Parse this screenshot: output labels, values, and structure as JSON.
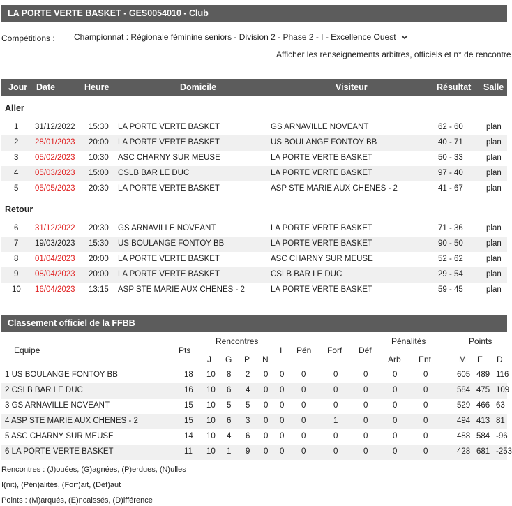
{
  "header": {
    "title": "LA PORTE VERTE BASKET - GES0054010 - Club"
  },
  "competitions": {
    "label": "Compétitions :",
    "selected": "Championnat : Régionale féminine seniors - Division 2 - Phase 2 - I - Excellence Ouest",
    "details_link": "Afficher les renseignements arbitres, officiels et n° de rencontre"
  },
  "schedule": {
    "columns": [
      "Jour",
      "Date",
      "Heure",
      "Domicile",
      "Visiteur",
      "Résultat",
      "Salle"
    ],
    "aller_label": "Aller",
    "retour_label": "Retour",
    "aller": [
      {
        "jour": "1",
        "date": "31/12/2022",
        "date_red": false,
        "heure": "15:30",
        "domicile": "LA PORTE VERTE BASKET",
        "visiteur": "GS ARNAVILLE NOVEANT",
        "resultat": "62 - 60",
        "salle": "plan"
      },
      {
        "jour": "2",
        "date": "28/01/2023",
        "date_red": true,
        "heure": "20:00",
        "domicile": "LA PORTE VERTE BASKET",
        "visiteur": "US BOULANGE FONTOY BB",
        "resultat": "40 - 71",
        "salle": "plan"
      },
      {
        "jour": "3",
        "date": "05/02/2023",
        "date_red": true,
        "heure": "10:30",
        "domicile": "ASC CHARNY SUR MEUSE",
        "visiteur": "LA PORTE VERTE BASKET",
        "resultat": "50 - 33",
        "salle": "plan"
      },
      {
        "jour": "4",
        "date": "05/03/2023",
        "date_red": true,
        "heure": "15:00",
        "domicile": "CSLB BAR LE DUC",
        "visiteur": "LA PORTE VERTE BASKET",
        "resultat": "97 - 40",
        "salle": "plan"
      },
      {
        "jour": "5",
        "date": "05/05/2023",
        "date_red": true,
        "heure": "20:30",
        "domicile": "LA PORTE VERTE BASKET",
        "visiteur": "ASP STE MARIE AUX CHENES - 2",
        "resultat": "41 - 67",
        "salle": "plan"
      }
    ],
    "retour": [
      {
        "jour": "6",
        "date": "31/12/2022",
        "date_red": true,
        "heure": "20:30",
        "domicile": "GS ARNAVILLE NOVEANT",
        "visiteur": "LA PORTE VERTE BASKET",
        "resultat": "71 - 36",
        "salle": "plan"
      },
      {
        "jour": "7",
        "date": "19/03/2023",
        "date_red": false,
        "heure": "15:30",
        "domicile": "US BOULANGE FONTOY BB",
        "visiteur": "LA PORTE VERTE BASKET",
        "resultat": "90 - 50",
        "salle": "plan"
      },
      {
        "jour": "8",
        "date": "01/04/2023",
        "date_red": true,
        "heure": "20:00",
        "domicile": "LA PORTE VERTE BASKET",
        "visiteur": "ASC CHARNY SUR MEUSE",
        "resultat": "52 - 62",
        "salle": "plan"
      },
      {
        "jour": "9",
        "date": "08/04/2023",
        "date_red": true,
        "heure": "20:00",
        "domicile": "LA PORTE VERTE BASKET",
        "visiteur": "CSLB BAR LE DUC",
        "resultat": "29 - 54",
        "salle": "plan"
      },
      {
        "jour": "10",
        "date": "16/04/2023",
        "date_red": true,
        "heure": "13:15",
        "domicile": "ASP STE MARIE AUX CHENES - 2",
        "visiteur": "LA PORTE VERTE BASKET",
        "resultat": "59 - 45",
        "salle": "plan"
      }
    ]
  },
  "classement": {
    "title": "Classement officiel de la FFBB",
    "headers": {
      "equipe": "Equipe",
      "pts": "Pts",
      "rencontres": "Rencontres",
      "i": "I",
      "pen": "Pén",
      "forf": "Forf",
      "def": "Déf",
      "penalites": "Pénalités",
      "points": "Points",
      "j": "J",
      "g": "G",
      "p": "P",
      "n": "N",
      "arb": "Arb",
      "ent": "Ent",
      "m": "M",
      "e": "E",
      "d": "D"
    },
    "rows": [
      {
        "equipe": "1 US BOULANGE FONTOY BB",
        "pts": "18",
        "j": "10",
        "g": "8",
        "p": "2",
        "n": "0",
        "i": "0",
        "pen": "0",
        "forf": "0",
        "def": "0",
        "arb": "0",
        "ent": "0",
        "m": "605",
        "e": "489",
        "d": "116"
      },
      {
        "equipe": "2 CSLB BAR LE DUC",
        "pts": "16",
        "j": "10",
        "g": "6",
        "p": "4",
        "n": "0",
        "i": "0",
        "pen": "0",
        "forf": "0",
        "def": "0",
        "arb": "0",
        "ent": "0",
        "m": "584",
        "e": "475",
        "d": "109"
      },
      {
        "equipe": "3 GS ARNAVILLE NOVEANT",
        "pts": "15",
        "j": "10",
        "g": "5",
        "p": "5",
        "n": "0",
        "i": "0",
        "pen": "0",
        "forf": "0",
        "def": "0",
        "arb": "0",
        "ent": "0",
        "m": "529",
        "e": "466",
        "d": "63"
      },
      {
        "equipe": "4 ASP STE MARIE AUX CHENES - 2",
        "pts": "15",
        "j": "10",
        "g": "6",
        "p": "3",
        "n": "0",
        "i": "0",
        "pen": "0",
        "forf": "1",
        "def": "0",
        "arb": "0",
        "ent": "0",
        "m": "494",
        "e": "413",
        "d": "81"
      },
      {
        "equipe": "5 ASC CHARNY SUR MEUSE",
        "pts": "14",
        "j": "10",
        "g": "4",
        "p": "6",
        "n": "0",
        "i": "0",
        "pen": "0",
        "forf": "0",
        "def": "0",
        "arb": "0",
        "ent": "0",
        "m": "488",
        "e": "584",
        "d": "-96"
      },
      {
        "equipe": "6 LA PORTE VERTE BASKET",
        "pts": "11",
        "j": "10",
        "g": "1",
        "p": "9",
        "n": "0",
        "i": "0",
        "pen": "0",
        "forf": "0",
        "def": "0",
        "arb": "0",
        "ent": "0",
        "m": "428",
        "e": "681",
        "d": "-253"
      }
    ],
    "legend": [
      "Rencontres : (J)ouées, (G)agnées, (P)erdues, (N)ulles",
      "I(nit), (Pén)alités, (Forf)ait, (Déf)aut",
      "Points : (M)arqués, (E)ncaissés, (D)ifférence"
    ]
  },
  "colors": {
    "header_bg": "#5c5c5c",
    "date_red": "#e02020",
    "rule_red": "#e03030",
    "row_alt": "#f0f0f0"
  }
}
